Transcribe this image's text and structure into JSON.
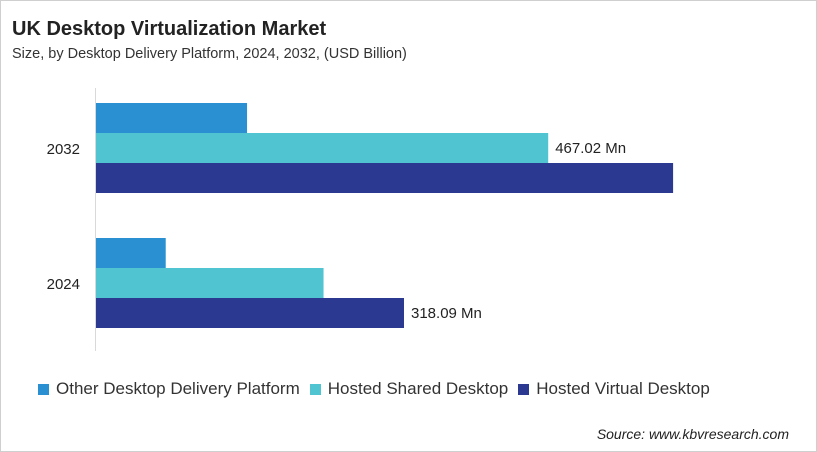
{
  "chart_data": {
    "type": "bar",
    "orientation": "horizontal",
    "title": "UK Desktop Virtualization Market",
    "subtitle": "Size, by Desktop Delivery Platform, 2024, 2032, (USD Billion)",
    "categories": [
      "2032",
      "2024"
    ],
    "series": [
      {
        "name": "Other Desktop Delivery Platform",
        "color": "#2A90D2",
        "values": [
          156,
          72
        ]
      },
      {
        "name": "Hosted Shared Desktop",
        "color": "#50C4D0",
        "values": [
          467.02,
          235
        ]
      },
      {
        "name": "Hosted Virtual Desktop",
        "color": "#2B3990",
        "values": [
          596,
          318.09
        ]
      }
    ],
    "data_labels": [
      {
        "category": "2032",
        "series": "Hosted Shared Desktop",
        "text": "467.02 Mn"
      },
      {
        "category": "2024",
        "series": "Hosted Virtual Desktop",
        "text": "318.09 Mn"
      }
    ],
    "xlim": [
      0,
      740
    ],
    "grid": false,
    "legend_position": "bottom",
    "source": "Source: www.kbvresearch.com"
  }
}
